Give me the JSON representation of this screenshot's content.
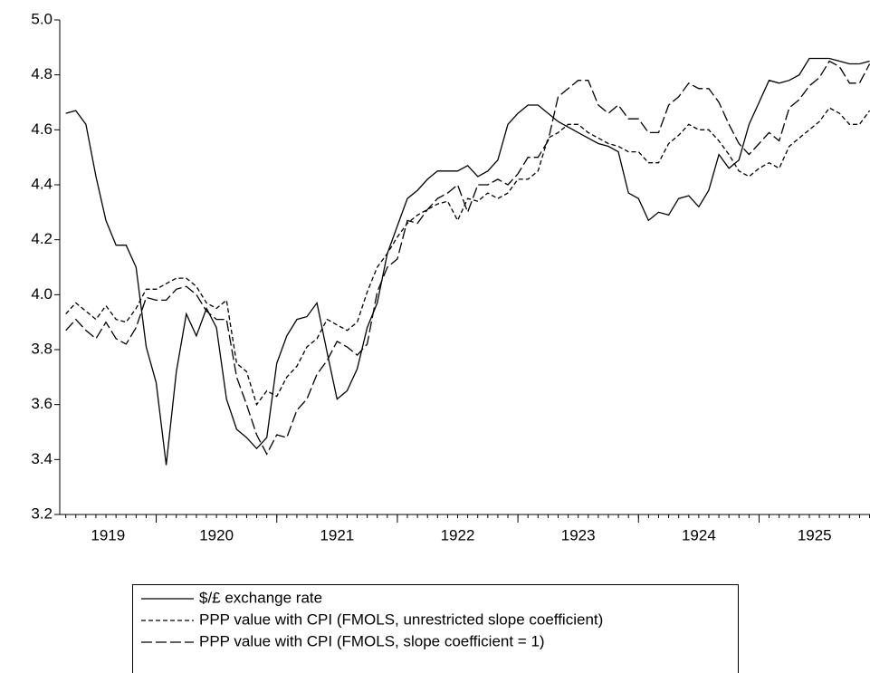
{
  "chart_data": {
    "type": "line",
    "x": [
      1919.25,
      1919.333,
      1919.417,
      1919.5,
      1919.583,
      1919.667,
      1919.75,
      1919.833,
      1919.917,
      1920,
      1920.083,
      1920.167,
      1920.25,
      1920.333,
      1920.417,
      1920.5,
      1920.583,
      1920.667,
      1920.75,
      1920.833,
      1920.917,
      1921,
      1921.083,
      1921.167,
      1921.25,
      1921.333,
      1921.417,
      1921.5,
      1921.583,
      1921.667,
      1921.75,
      1921.833,
      1921.917,
      1922,
      1922.083,
      1922.167,
      1922.25,
      1922.333,
      1922.417,
      1922.5,
      1922.583,
      1922.667,
      1922.75,
      1922.833,
      1922.917,
      1923,
      1923.083,
      1923.167,
      1923.25,
      1923.333,
      1923.417,
      1923.5,
      1923.583,
      1923.667,
      1923.75,
      1923.833,
      1923.917,
      1924,
      1924.083,
      1924.167,
      1924.25,
      1924.333,
      1924.417,
      1924.5,
      1924.583,
      1924.667,
      1924.75,
      1924.833,
      1924.917,
      1925,
      1925.083,
      1925.167,
      1925.25,
      1925.333,
      1925.417,
      1925.5,
      1925.583,
      1925.667,
      1925.75,
      1925.833,
      1925.917
    ],
    "series": [
      {
        "name": "$/£ exchange rate",
        "color": "#000000",
        "line_style": "solid",
        "values": [
          4.66,
          4.67,
          4.62,
          4.43,
          4.27,
          4.18,
          4.18,
          4.1,
          3.81,
          3.68,
          3.38,
          3.72,
          3.93,
          3.85,
          3.95,
          3.88,
          3.62,
          3.51,
          3.48,
          3.44,
          3.48,
          3.75,
          3.85,
          3.91,
          3.92,
          3.97,
          3.79,
          3.62,
          3.65,
          3.73,
          3.88,
          3.97,
          4.15,
          4.25,
          4.35,
          4.38,
          4.42,
          4.45,
          4.45,
          4.45,
          4.47,
          4.43,
          4.45,
          4.49,
          4.62,
          4.66,
          4.69,
          4.69,
          4.66,
          4.63,
          4.61,
          4.59,
          4.57,
          4.55,
          4.54,
          4.52,
          4.37,
          4.35,
          4.27,
          4.3,
          4.29,
          4.35,
          4.36,
          4.32,
          4.38,
          4.51,
          4.46,
          4.49,
          4.62,
          4.7,
          4.78,
          4.77,
          4.78,
          4.8,
          4.86,
          4.86,
          4.86,
          4.85,
          4.84,
          4.84,
          4.85
        ]
      },
      {
        "name": "PPP value with CPI (FMOLS, unrestricted slope coefficient)",
        "color": "#000000",
        "line_style": "short-dash",
        "values": [
          3.93,
          3.97,
          3.94,
          3.91,
          3.96,
          3.91,
          3.9,
          3.95,
          4.02,
          4.02,
          4.04,
          4.06,
          4.06,
          4.03,
          3.97,
          3.95,
          3.98,
          3.75,
          3.72,
          3.6,
          3.65,
          3.63,
          3.7,
          3.74,
          3.81,
          3.84,
          3.91,
          3.89,
          3.87,
          3.9,
          4.01,
          4.1,
          4.15,
          4.21,
          4.26,
          4.29,
          4.31,
          4.33,
          4.34,
          4.27,
          4.35,
          4.34,
          4.37,
          4.35,
          4.37,
          4.42,
          4.42,
          4.45,
          4.57,
          4.59,
          4.62,
          4.62,
          4.59,
          4.57,
          4.55,
          4.54,
          4.52,
          4.52,
          4.48,
          4.48,
          4.55,
          4.58,
          4.62,
          4.6,
          4.6,
          4.56,
          4.51,
          4.45,
          4.43,
          4.46,
          4.48,
          4.46,
          4.54,
          4.57,
          4.6,
          4.63,
          4.68,
          4.66,
          4.62,
          4.62,
          4.67
        ]
      },
      {
        "name": "PPP value with CPI (FMOLS, slope coefficient = 1)",
        "color": "#000000",
        "line_style": "long-dash",
        "values": [
          3.87,
          3.91,
          3.87,
          3.84,
          3.9,
          3.84,
          3.82,
          3.88,
          3.99,
          3.98,
          3.98,
          4.02,
          4.03,
          4.0,
          3.94,
          3.91,
          3.91,
          3.7,
          3.6,
          3.49,
          3.42,
          3.49,
          3.48,
          3.58,
          3.62,
          3.71,
          3.76,
          3.83,
          3.81,
          3.78,
          3.82,
          4.01,
          4.1,
          4.13,
          4.27,
          4.26,
          4.31,
          4.35,
          4.37,
          4.4,
          4.3,
          4.4,
          4.4,
          4.42,
          4.4,
          4.44,
          4.5,
          4.5,
          4.56,
          4.72,
          4.75,
          4.78,
          4.78,
          4.69,
          4.66,
          4.69,
          4.64,
          4.64,
          4.59,
          4.59,
          4.69,
          4.72,
          4.77,
          4.75,
          4.75,
          4.7,
          4.62,
          4.55,
          4.51,
          4.55,
          4.59,
          4.56,
          4.68,
          4.71,
          4.76,
          4.79,
          4.85,
          4.83,
          4.77,
          4.77,
          4.84
        ]
      }
    ],
    "xlim": [
      1919.2,
      1925.92
    ],
    "xticks": [
      1919,
      1920,
      1921,
      1922,
      1923,
      1924,
      1925
    ],
    "ylim": [
      3.2,
      5.0
    ],
    "yticks": [
      3.2,
      3.4,
      3.6,
      3.8,
      {
        "value": 4.0,
        "label": "4.0"
      },
      4.2,
      4.4,
      4.6,
      4.8,
      {
        "value": 5.0,
        "label": "5.0"
      }
    ],
    "legend": "bottom"
  }
}
